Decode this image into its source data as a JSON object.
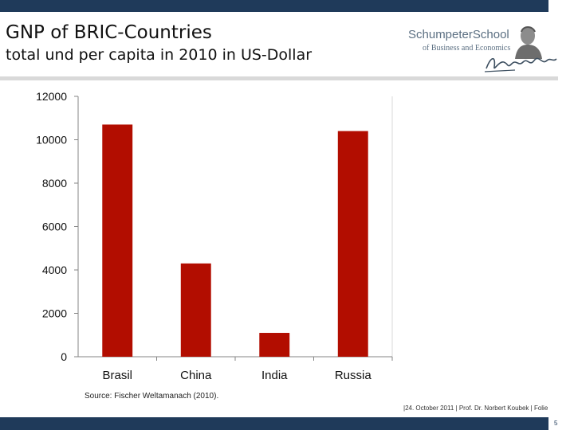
{
  "slide": {
    "title": "GNP of BRIC-Countries",
    "subtitle": "total und per capita in 2010 in US-Dollar",
    "source": "Source: Fischer Weltamanach (2010).",
    "footer_info": "|24. October 2011 | Prof. Dr. Norbert Koubek | Folie",
    "page_number": "5"
  },
  "logo": {
    "name": "SchumpeterSchool",
    "sub": "of Business and Economics"
  },
  "colors": {
    "bar": "#b20d00",
    "header_bar": "#1f3a5a",
    "rule": "#d9d9d9"
  },
  "chart_data": {
    "type": "bar",
    "categories": [
      "Brasil",
      "China",
      "India",
      "Russia"
    ],
    "values": [
      10700,
      4300,
      1100,
      10400
    ],
    "title": "",
    "xlabel": "",
    "ylabel": "",
    "ylim": [
      0,
      12000
    ],
    "yticks": [
      0,
      2000,
      4000,
      6000,
      8000,
      10000,
      12000
    ],
    "grid": false,
    "legend": "none"
  }
}
